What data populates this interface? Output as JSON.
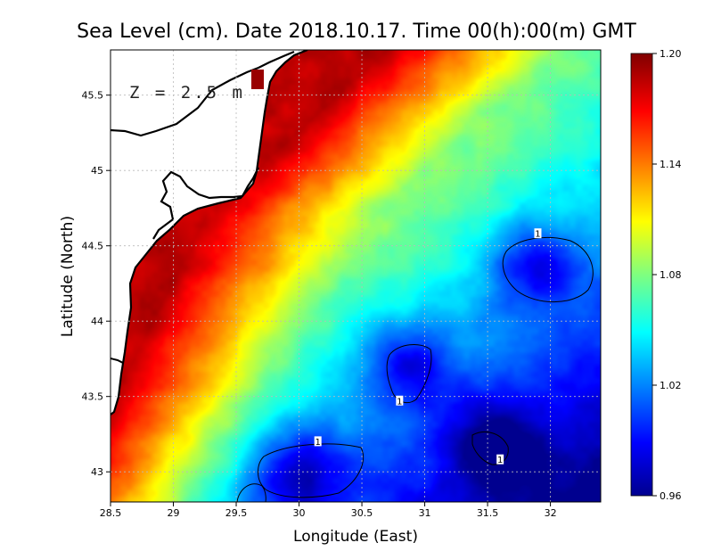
{
  "chart_data": {
    "type": "heatmap",
    "title": "Sea Level (cm). Date 2018.10.17. Time 00(h):00(m) GMT",
    "annotation": "Z = 2.5 m",
    "xlabel": "Longitude (East)",
    "ylabel": "Latitude (North)",
    "xlim": [
      28.5,
      32.4
    ],
    "ylim": [
      42.8,
      45.8
    ],
    "x_ticks": [
      "28.5",
      "29",
      "29.5",
      "30",
      "30.5",
      "31",
      "31.5",
      "32"
    ],
    "y_ticks": [
      "43",
      "43.5",
      "44",
      "44.5",
      "45",
      "45.5"
    ],
    "colorbar": {
      "min": 0.96,
      "max": 1.2,
      "tick_labels": [
        "0.96",
        "1.02",
        "1.08",
        "1.14",
        "1.20"
      ],
      "colormap": "jet"
    },
    "contour_level": "1",
    "contour_labels": [
      {
        "text": "1",
        "lon": 31.9,
        "lat": 44.58
      },
      {
        "text": "1",
        "lon": 30.8,
        "lat": 43.47
      },
      {
        "text": "1",
        "lon": 30.15,
        "lat": 43.2
      },
      {
        "text": "1",
        "lon": 31.6,
        "lat": 43.08
      }
    ],
    "grid": true,
    "field_features": [
      {
        "kind": "high",
        "lon": 29.6,
        "lat": 45.7,
        "value": 1.2
      },
      {
        "kind": "low",
        "lon": 31.85,
        "lat": 44.38,
        "value": 0.96
      },
      {
        "kind": "low",
        "lon": 30.85,
        "lat": 43.72,
        "value": 0.975
      },
      {
        "kind": "low",
        "lon": 30.0,
        "lat": 43.0,
        "value": 0.96
      },
      {
        "kind": "low",
        "lon": 31.55,
        "lat": 43.2,
        "value": 0.985
      }
    ]
  },
  "colors": {
    "land": "#ffffff",
    "coast": "#000000",
    "grid": "#bbbbbb"
  }
}
